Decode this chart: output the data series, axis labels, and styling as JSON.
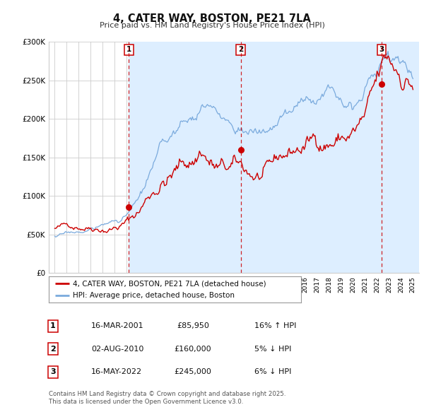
{
  "title": "4, CATER WAY, BOSTON, PE21 7LA",
  "subtitle": "Price paid vs. HM Land Registry's House Price Index (HPI)",
  "legend_entry1": "4, CATER WAY, BOSTON, PE21 7LA (detached house)",
  "legend_entry2": "HPI: Average price, detached house, Boston",
  "price_color": "#cc0000",
  "hpi_color": "#7aaadd",
  "background_color": "#ffffff",
  "span_color": "#ddeeff",
  "grid_color": "#cccccc",
  "ylim": [
    0,
    300000
  ],
  "yticks": [
    0,
    50000,
    100000,
    150000,
    200000,
    250000,
    300000
  ],
  "ytick_labels": [
    "£0",
    "£50K",
    "£100K",
    "£150K",
    "£200K",
    "£250K",
    "£300K"
  ],
  "sale1_x": 2001.21,
  "sale1_y": 85950,
  "sale2_x": 2010.58,
  "sale2_y": 160000,
  "sale3_x": 2022.38,
  "sale3_y": 245000,
  "table_rows": [
    {
      "num": "1",
      "date": "16-MAR-2001",
      "price": "£85,950",
      "hpi": "16% ↑ HPI"
    },
    {
      "num": "2",
      "date": "02-AUG-2010",
      "price": "£160,000",
      "hpi": "5% ↓ HPI"
    },
    {
      "num": "3",
      "date": "16-MAY-2022",
      "price": "£245,000",
      "hpi": "6% ↓ HPI"
    }
  ],
  "footer": "Contains HM Land Registry data © Crown copyright and database right 2025.\nThis data is licensed under the Open Government Licence v3.0.",
  "xmin": 1994.5,
  "xmax": 2025.5
}
